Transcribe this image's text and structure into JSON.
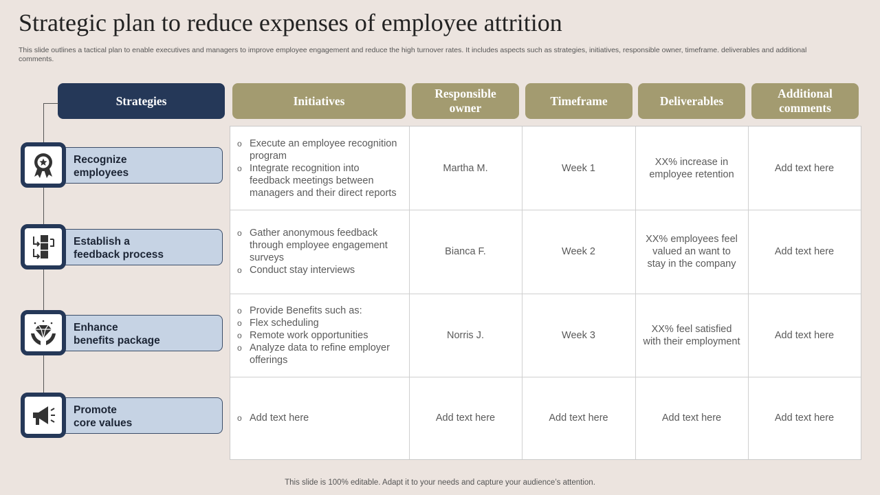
{
  "title": "Strategic plan to reduce expenses of employee attrition",
  "subtitle": "This slide outlines a tactical plan to enable executives and managers to improve employee engagement and reduce the high turnover rates. It includes aspects such as strategies, initiatives, responsible owner, timeframe. deliverables and additional comments.",
  "headers": {
    "strategies": "Strategies",
    "initiatives": "Initiatives",
    "owner": "Responsible owner",
    "timeframe": "Timeframe",
    "deliverables": "Deliverables",
    "comments": "Additional comments"
  },
  "strategies": [
    {
      "line1": "Recognize",
      "line2": "employees",
      "icon": "award-badge-icon"
    },
    {
      "line1": "Establish a",
      "line2": "feedback process",
      "icon": "feedback-process-icon"
    },
    {
      "line1": "Enhance",
      "line2": "benefits package",
      "icon": "diamond-hands-icon"
    },
    {
      "line1": "Promote",
      "line2": "core values",
      "icon": "megaphone-icon"
    }
  ],
  "rows": [
    {
      "initiatives": [
        "Execute an employee recognition program",
        "Integrate recognition into feedback meetings between managers and their direct reports"
      ],
      "owner": "Martha M.",
      "timeframe": "Week 1",
      "deliverables": "XX% increase in employee retention",
      "comments": "Add text here"
    },
    {
      "initiatives": [
        "Gather anonymous feedback through employee engagement surveys",
        "Conduct stay interviews"
      ],
      "owner": "Bianca F.",
      "timeframe": "Week 2",
      "deliverables": "XX% employees feel valued an want to stay in the company",
      "comments": "Add text here"
    },
    {
      "initiatives": [
        "Provide Benefits such as:",
        "Flex scheduling",
        "Remote work opportunities",
        "Analyze data to refine employer offerings"
      ],
      "owner": "Norris J.",
      "timeframe": "Week 3",
      "deliverables": "XX% feel satisfied with their employment",
      "comments": "Add text here"
    },
    {
      "initiatives": [
        "Add text here"
      ],
      "owner": "Add text here",
      "timeframe": "Add text here",
      "deliverables": "Add text here",
      "comments": "Add text here"
    }
  ],
  "footer": "This slide is 100% editable. Adapt it to your needs and capture your audience’s attention.",
  "colors": {
    "background": "#ece4df",
    "navy": "#253858",
    "olive": "#a39b70",
    "strategy_fill": "#c6d3e4"
  }
}
